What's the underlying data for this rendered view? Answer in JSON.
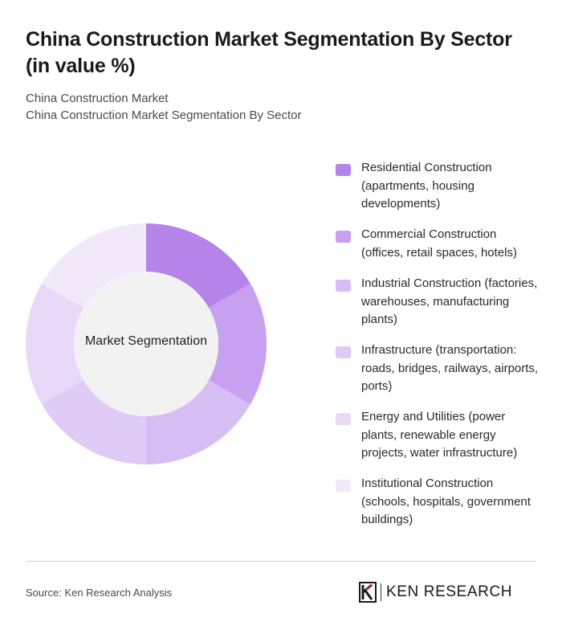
{
  "header": {
    "title": "China Construction Market Segmentation By Sector (in value %)",
    "subtitle_1": "China Construction Market",
    "subtitle_2": "China Construction Market Segmentation By Sector"
  },
  "chart_data": {
    "type": "pie",
    "center_label": "Market Segmentation",
    "categories": [
      "Residential Construction (apartments, housing developments)",
      "Commercial Construction (offices, retail spaces, hotels)",
      "Industrial Construction (factories, warehouses, manufacturing plants)",
      "Infrastructure (transportation: roads, bridges, railways, airports, ports)",
      "Energy and Utilities (power plants, renewable energy projects, water infrastructure)",
      "Institutional Construction (schools, hospitals, government buildings)"
    ],
    "values": [
      16.7,
      16.7,
      16.7,
      16.7,
      16.7,
      16.7
    ],
    "colors": [
      "#b584ea",
      "#c7a0ef",
      "#d6bdf3",
      "#dfcbf5",
      "#e7d9f7",
      "#f1e9fa"
    ],
    "legend_position": "right"
  },
  "footer": {
    "source": "Source: Ken Research Analysis",
    "brand": "KEN RESEARCH"
  }
}
